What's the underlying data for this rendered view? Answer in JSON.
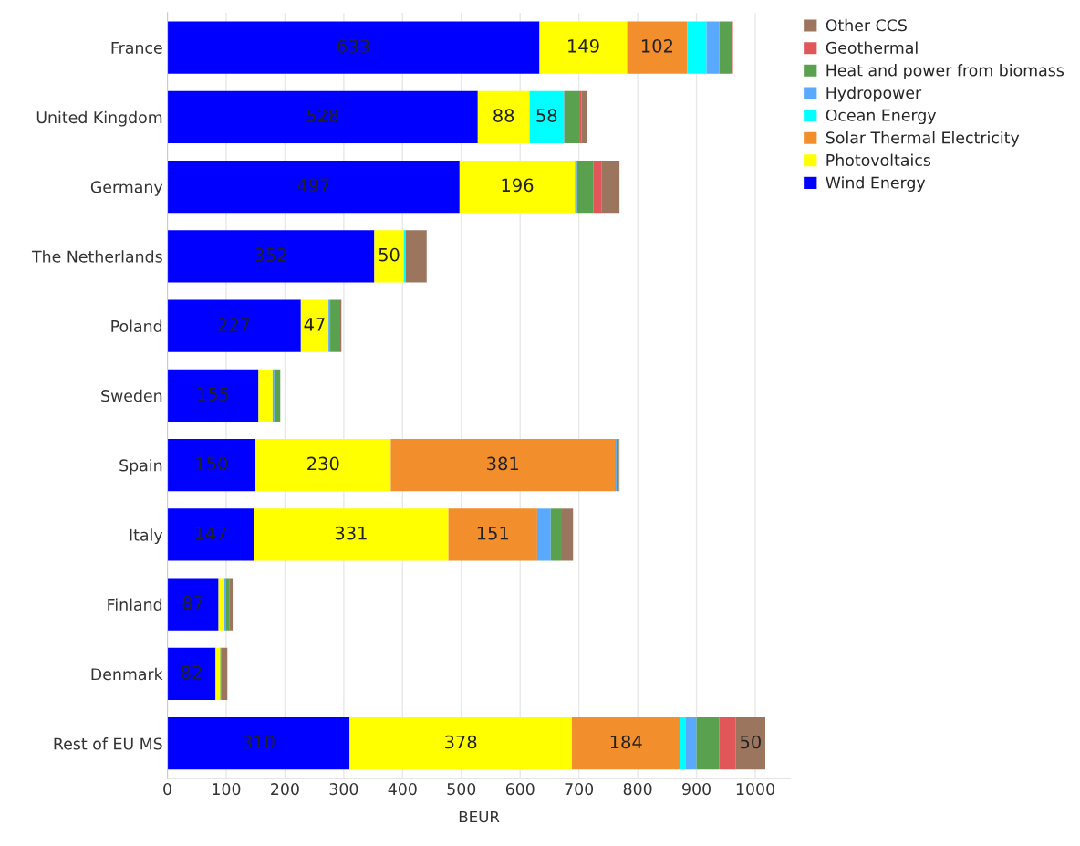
{
  "chart_data": {
    "type": "bar",
    "orientation": "horizontal",
    "stacked": true,
    "xlabel": "BEUR",
    "categories": [
      "France",
      "United Kingdom",
      "Germany",
      "The Netherlands",
      "Poland",
      "Sweden",
      "Spain",
      "Italy",
      "Finland",
      "Denmark",
      "Rest of EU MS"
    ],
    "series": [
      {
        "name": "Wind Energy",
        "color": "#0000ff",
        "values": [
          633,
          528,
          497,
          352,
          227,
          155,
          150,
          147,
          87,
          82,
          310
        ],
        "value_labels": [
          "633",
          "528",
          "497",
          "352",
          "227",
          "155",
          "150",
          "147",
          "87",
          "82",
          "310"
        ]
      },
      {
        "name": "Photovoltaics",
        "color": "#ffff00",
        "values": [
          149,
          88,
          196,
          50,
          47,
          24,
          230,
          331,
          10,
          8,
          378
        ],
        "value_labels": [
          "149",
          "88",
          "196",
          "50",
          "47",
          null,
          "230",
          "331",
          null,
          null,
          "378"
        ]
      },
      {
        "name": "Solar Thermal Electricity",
        "color": "#f28e2b",
        "values": [
          102,
          0,
          0,
          0,
          0,
          0,
          381,
          151,
          0,
          0,
          184
        ],
        "value_labels": [
          "102",
          null,
          null,
          null,
          null,
          null,
          "381",
          "151",
          null,
          null,
          "184"
        ]
      },
      {
        "name": "Ocean Energy",
        "color": "#00ffff",
        "values": [
          33,
          58,
          1,
          3,
          0,
          0,
          0,
          0,
          0,
          0,
          10
        ],
        "value_labels": [
          null,
          "58",
          null,
          null,
          null,
          null,
          null,
          null,
          null,
          null,
          null
        ]
      },
      {
        "name": "Hydropower",
        "color": "#59a9ff",
        "values": [
          22,
          1,
          3,
          0,
          3,
          3,
          3,
          23,
          2,
          0,
          18
        ]
      },
      {
        "name": "Heat and power from biomass",
        "color": "#59a14f",
        "values": [
          21,
          27,
          28,
          0,
          17,
          10,
          4,
          19,
          7,
          2,
          39
        ]
      },
      {
        "name": "Geothermal",
        "color": "#e15759",
        "values": [
          2,
          2,
          14,
          0,
          0,
          0,
          0,
          0,
          0,
          0,
          28
        ]
      },
      {
        "name": "Other CCS",
        "color": "#9c755f",
        "values": [
          0,
          9,
          30,
          36,
          2,
          0,
          1,
          19,
          5,
          10,
          50
        ],
        "value_labels": [
          null,
          null,
          null,
          null,
          null,
          null,
          null,
          null,
          null,
          null,
          "50"
        ]
      }
    ],
    "xlim": [
      0,
      1060
    ],
    "xticks": [
      0,
      100,
      200,
      300,
      400,
      500,
      600,
      700,
      800,
      900,
      1000
    ],
    "grid": "x",
    "legend": "right"
  }
}
